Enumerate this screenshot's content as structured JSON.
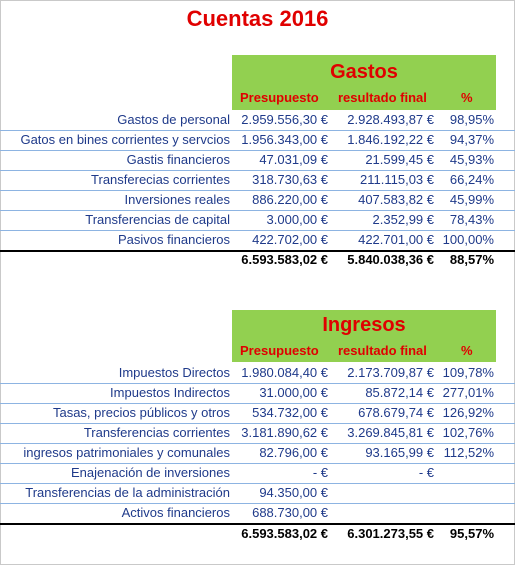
{
  "title": "Cuentas 2016",
  "gastos": {
    "heading": "Gastos",
    "col_presupuesto": "Presupuesto",
    "col_resultado": "resultado final",
    "col_pct": "%",
    "rows": [
      {
        "label": "Gastos de personal",
        "presupuesto": "2.959.556,30 €",
        "resultado": "2.928.493,87 €",
        "pct": "98,95%"
      },
      {
        "label": "Gatos en bines corrientes y servcios",
        "presupuesto": "1.956.343,00 €",
        "resultado": "1.846.192,22 €",
        "pct": "94,37%"
      },
      {
        "label": "Gastis financieros",
        "presupuesto": "47.031,09 €",
        "resultado": "21.599,45 €",
        "pct": "45,93%"
      },
      {
        "label": "Transferecias corrientes",
        "presupuesto": "318.730,63 €",
        "resultado": "211.115,03 €",
        "pct": "66,24%"
      },
      {
        "label": "Inversiones reales",
        "presupuesto": "886.220,00 €",
        "resultado": "407.583,82 €",
        "pct": "45,99%"
      },
      {
        "label": "Transferencias de capital",
        "presupuesto": "3.000,00 €",
        "resultado": "2.352,99 €",
        "pct": "78,43%"
      },
      {
        "label": "Pasivos financieros",
        "presupuesto": "422.702,00 €",
        "resultado": "422.701,00 €",
        "pct": "100,00%"
      }
    ],
    "total": {
      "presupuesto": "6.593.583,02 €",
      "resultado": "5.840.038,36 €",
      "pct": "88,57%"
    }
  },
  "ingresos": {
    "heading": "Ingresos",
    "col_presupuesto": "Presupuesto",
    "col_resultado": "resultado final",
    "col_pct": "%",
    "rows": [
      {
        "label": "Impuestos Directos",
        "presupuesto": "1.980.084,40 €",
        "resultado": "2.173.709,87 €",
        "pct": "109,78%"
      },
      {
        "label": "Impuestos Indirectos",
        "presupuesto": "31.000,00 €",
        "resultado": "85.872,14 €",
        "pct": "277,01%"
      },
      {
        "label": "Tasas, precios públicos y otros",
        "presupuesto": "534.732,00 €",
        "resultado": "678.679,74 €",
        "pct": "126,92%"
      },
      {
        "label": "Transferencias corrientes",
        "presupuesto": "3.181.890,62 €",
        "resultado": "3.269.845,81 €",
        "pct": "102,76%"
      },
      {
        "label": "ingresos patrimoniales y comunales",
        "presupuesto": "82.796,00 €",
        "resultado": "93.165,99 €",
        "pct": "112,52%"
      },
      {
        "label": "Enajenación de inversiones",
        "presupuesto": "-   €",
        "resultado": "-   €",
        "pct": ""
      },
      {
        "label": "Transferencias de la administración",
        "presupuesto": "94.350,00 €",
        "resultado": "",
        "pct": ""
      },
      {
        "label": "Activos financieros",
        "presupuesto": "688.730,00 €",
        "resultado": "",
        "pct": ""
      }
    ],
    "total": {
      "presupuesto": "6.593.583,02 €",
      "resultado": "6.301.273,55 €",
      "pct": "95,57%"
    }
  }
}
